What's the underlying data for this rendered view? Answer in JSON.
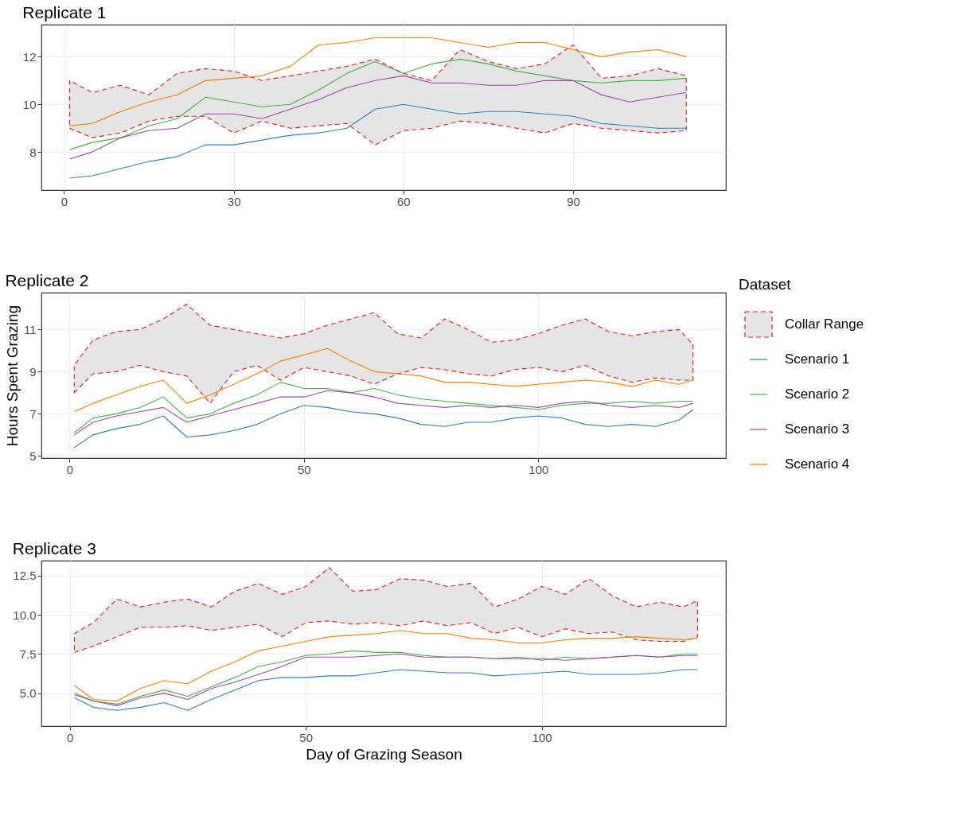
{
  "chart_data": [
    {
      "type": "line",
      "title": "Replicate 1",
      "grid": true,
      "x": [
        1,
        5,
        10,
        15,
        20,
        25,
        30,
        35,
        40,
        45,
        50,
        55,
        60,
        65,
        70,
        75,
        80,
        85,
        90,
        95,
        100,
        105,
        110
      ],
      "xlim": [
        -4,
        117
      ],
      "xticks": [
        0,
        30,
        60,
        90
      ],
      "ylim": [
        6.4,
        13.35
      ],
      "yticks": [
        8,
        10,
        12
      ],
      "series": [
        {
          "color": "#e41a1c",
          "line_style": "dashed",
          "values": [
            null,
            null,
            null,
            null,
            null,
            null,
            null,
            null,
            null,
            null,
            null,
            null,
            null,
            null,
            null,
            null,
            null,
            null,
            null,
            null,
            null,
            null,
            null
          ],
          "lower": [
            9.0,
            8.6,
            8.8,
            9.3,
            9.5,
            9.5,
            8.8,
            9.3,
            9.0,
            9.1,
            9.2,
            8.3,
            8.9,
            9.0,
            9.3,
            9.2,
            9.0,
            8.8,
            9.2,
            9.0,
            8.9,
            8.8,
            8.9
          ],
          "upper": [
            11.0,
            10.5,
            10.8,
            10.4,
            11.3,
            11.5,
            11.4,
            11.0,
            11.2,
            11.4,
            11.6,
            11.9,
            11.3,
            11.0,
            12.3,
            11.8,
            11.5,
            11.7,
            12.5,
            11.1,
            11.2,
            11.5,
            11.2
          ]
        },
        {
          "color": "#377eb8",
          "values": [
            6.9,
            7.0,
            7.3,
            7.6,
            7.8,
            8.3,
            8.3,
            8.5,
            8.7,
            8.8,
            9.0,
            9.8,
            10.0,
            9.8,
            9.6,
            9.7,
            9.7,
            9.6,
            9.5,
            9.2,
            9.1,
            9.0,
            9.0
          ]
        },
        {
          "color": "#4daf4a",
          "values": [
            8.1,
            8.4,
            8.6,
            9.1,
            9.4,
            10.3,
            10.1,
            9.9,
            10.0,
            10.6,
            11.3,
            11.8,
            11.3,
            11.7,
            11.9,
            11.7,
            11.4,
            11.2,
            11.0,
            10.9,
            11.0,
            11.0,
            11.1
          ]
        },
        {
          "color": "#984ea3",
          "values": [
            7.7,
            8.0,
            8.6,
            8.9,
            9.0,
            9.6,
            9.6,
            9.4,
            9.8,
            10.2,
            10.7,
            11.0,
            11.2,
            10.9,
            10.9,
            10.8,
            10.8,
            11.0,
            11.0,
            10.4,
            10.1,
            10.3,
            10.5
          ]
        },
        {
          "color": "#ff7f00",
          "values": [
            9.1,
            9.2,
            9.7,
            10.1,
            10.4,
            11.0,
            11.1,
            11.2,
            11.6,
            12.5,
            12.6,
            12.8,
            12.8,
            12.8,
            12.6,
            12.4,
            12.6,
            12.6,
            12.3,
            12.0,
            12.2,
            12.3,
            12.0
          ]
        }
      ]
    },
    {
      "type": "line",
      "title": "Replicate 2",
      "ylabel": "Hours Spent Grazing",
      "legend_title": "Dataset",
      "legend": "right",
      "grid": true,
      "x": [
        1,
        5,
        10,
        15,
        20,
        25,
        30,
        35,
        40,
        45,
        50,
        55,
        60,
        65,
        70,
        75,
        80,
        85,
        90,
        95,
        100,
        105,
        110,
        115,
        120,
        125,
        130,
        133
      ],
      "xlim": [
        -6,
        140
      ],
      "xticks": [
        0,
        50,
        100
      ],
      "ylim": [
        4.9,
        12.75
      ],
      "yticks": [
        5,
        7,
        9,
        11
      ],
      "series": [
        {
          "name": "Collar Range",
          "color": "#e41a1c",
          "line_style": "dashed",
          "values": [
            null,
            null,
            null,
            null,
            null,
            null,
            null,
            null,
            null,
            null,
            null,
            null,
            null,
            null,
            null,
            null,
            null,
            null,
            null,
            null,
            null,
            null,
            null,
            null,
            null,
            null,
            null,
            null
          ],
          "lower": [
            8.0,
            8.9,
            9.0,
            9.3,
            9.0,
            8.8,
            7.5,
            9.0,
            9.3,
            8.6,
            9.2,
            9.0,
            8.8,
            8.4,
            8.9,
            9.2,
            9.1,
            8.9,
            8.8,
            9.1,
            9.2,
            9.0,
            9.3,
            8.8,
            8.5,
            8.7,
            8.6,
            8.6
          ],
          "upper": [
            9.3,
            10.5,
            10.9,
            11.0,
            11.5,
            12.2,
            11.2,
            11.0,
            10.8,
            10.6,
            10.8,
            11.2,
            11.5,
            11.8,
            10.8,
            10.6,
            11.5,
            11.0,
            10.4,
            10.5,
            10.8,
            11.2,
            11.5,
            10.9,
            10.7,
            10.9,
            11.0,
            10.3
          ]
        },
        {
          "name": "Scenario 1",
          "color": "#377eb8",
          "values": [
            5.4,
            6.0,
            6.3,
            6.5,
            6.9,
            5.9,
            6.0,
            6.2,
            6.5,
            7.0,
            7.4,
            7.3,
            7.1,
            7.0,
            6.8,
            6.5,
            6.4,
            6.6,
            6.6,
            6.8,
            6.9,
            6.8,
            6.5,
            6.4,
            6.5,
            6.4,
            6.7,
            7.2
          ]
        },
        {
          "name": "Scenario 2",
          "color": "#4daf4a",
          "values": [
            6.1,
            6.8,
            7.0,
            7.3,
            7.8,
            6.8,
            7.0,
            7.5,
            7.9,
            8.5,
            8.2,
            8.2,
            8.0,
            8.2,
            7.9,
            7.7,
            7.6,
            7.5,
            7.4,
            7.3,
            7.2,
            7.4,
            7.5,
            7.5,
            7.6,
            7.5,
            7.6,
            7.6
          ]
        },
        {
          "name": "Scenario 3",
          "color": "#984ea3",
          "values": [
            6.0,
            6.6,
            6.9,
            7.1,
            7.3,
            6.6,
            6.9,
            7.2,
            7.5,
            7.8,
            7.8,
            8.1,
            8.0,
            7.8,
            7.5,
            7.4,
            7.3,
            7.4,
            7.3,
            7.4,
            7.3,
            7.5,
            7.6,
            7.4,
            7.3,
            7.4,
            7.3,
            7.5
          ]
        },
        {
          "name": "Scenario 4",
          "color": "#ff7f00",
          "values": [
            7.1,
            7.5,
            7.9,
            8.3,
            8.6,
            7.5,
            7.9,
            8.4,
            8.9,
            9.5,
            9.8,
            10.1,
            9.5,
            9.0,
            8.9,
            8.8,
            8.5,
            8.5,
            8.4,
            8.3,
            8.4,
            8.5,
            8.6,
            8.5,
            8.3,
            8.6,
            8.4,
            8.6
          ]
        }
      ]
    },
    {
      "type": "line",
      "title": "Replicate 3",
      "xlabel": "Day of Grazing Season",
      "grid": true,
      "x": [
        1,
        5,
        10,
        15,
        20,
        25,
        30,
        35,
        40,
        45,
        50,
        55,
        60,
        65,
        70,
        75,
        80,
        85,
        90,
        95,
        100,
        105,
        110,
        115,
        120,
        125,
        130,
        133
      ],
      "xlim": [
        -6,
        139
      ],
      "xticks": [
        0,
        50,
        100
      ],
      "ylim": [
        2.9,
        13.45
      ],
      "yticks": [
        {
          "value": 5,
          "label": "5.0"
        },
        7.5,
        {
          "value": 10,
          "label": "10.0"
        },
        12.5
      ],
      "series": [
        {
          "color": "#e41a1c",
          "line_style": "dashed",
          "values": [
            null,
            null,
            null,
            null,
            null,
            null,
            null,
            null,
            null,
            null,
            null,
            null,
            null,
            null,
            null,
            null,
            null,
            null,
            null,
            null,
            null,
            null,
            null,
            null,
            null,
            null,
            null,
            null
          ],
          "lower": [
            7.6,
            8.0,
            8.6,
            9.2,
            9.2,
            9.3,
            9.0,
            9.2,
            9.4,
            8.6,
            9.5,
            9.6,
            9.4,
            9.5,
            9.3,
            9.6,
            9.3,
            9.5,
            8.8,
            9.2,
            8.6,
            9.1,
            8.8,
            8.9,
            8.4,
            8.3,
            8.3,
            8.6
          ],
          "upper": [
            8.8,
            9.5,
            11.0,
            10.5,
            10.8,
            11.0,
            10.5,
            11.5,
            12.0,
            11.3,
            11.8,
            13.0,
            11.5,
            11.6,
            12.3,
            12.2,
            11.8,
            12.0,
            10.5,
            11.0,
            11.8,
            11.3,
            12.3,
            11.2,
            10.5,
            10.8,
            10.5,
            10.9
          ]
        },
        {
          "color": "#377eb8",
          "values": [
            4.7,
            4.1,
            3.9,
            4.1,
            4.4,
            3.9,
            4.6,
            5.2,
            5.8,
            6.0,
            6.0,
            6.1,
            6.1,
            6.3,
            6.5,
            6.4,
            6.3,
            6.3,
            6.1,
            6.2,
            6.3,
            6.4,
            6.2,
            6.2,
            6.2,
            6.3,
            6.5,
            6.5
          ]
        },
        {
          "color": "#4daf4a",
          "values": [
            5.0,
            4.5,
            4.3,
            4.8,
            5.2,
            4.8,
            5.4,
            6.0,
            6.7,
            7.0,
            7.4,
            7.5,
            7.7,
            7.6,
            7.6,
            7.4,
            7.3,
            7.3,
            7.2,
            7.3,
            7.1,
            7.3,
            7.2,
            7.3,
            7.4,
            7.3,
            7.5,
            7.5
          ]
        },
        {
          "color": "#984ea3",
          "values": [
            4.9,
            4.5,
            4.2,
            4.7,
            5.0,
            4.6,
            5.3,
            5.7,
            6.2,
            6.7,
            7.3,
            7.3,
            7.3,
            7.4,
            7.5,
            7.3,
            7.3,
            7.3,
            7.2,
            7.2,
            7.2,
            7.1,
            7.2,
            7.3,
            7.4,
            7.3,
            7.4,
            7.4
          ]
        },
        {
          "color": "#ff7f00",
          "values": [
            5.5,
            4.6,
            4.5,
            5.3,
            5.8,
            5.6,
            6.4,
            7.0,
            7.7,
            8.0,
            8.3,
            8.6,
            8.7,
            8.8,
            9.0,
            8.8,
            8.8,
            8.5,
            8.4,
            8.2,
            8.2,
            8.4,
            8.5,
            8.5,
            8.6,
            8.5,
            8.4,
            8.5
          ]
        }
      ]
    }
  ]
}
